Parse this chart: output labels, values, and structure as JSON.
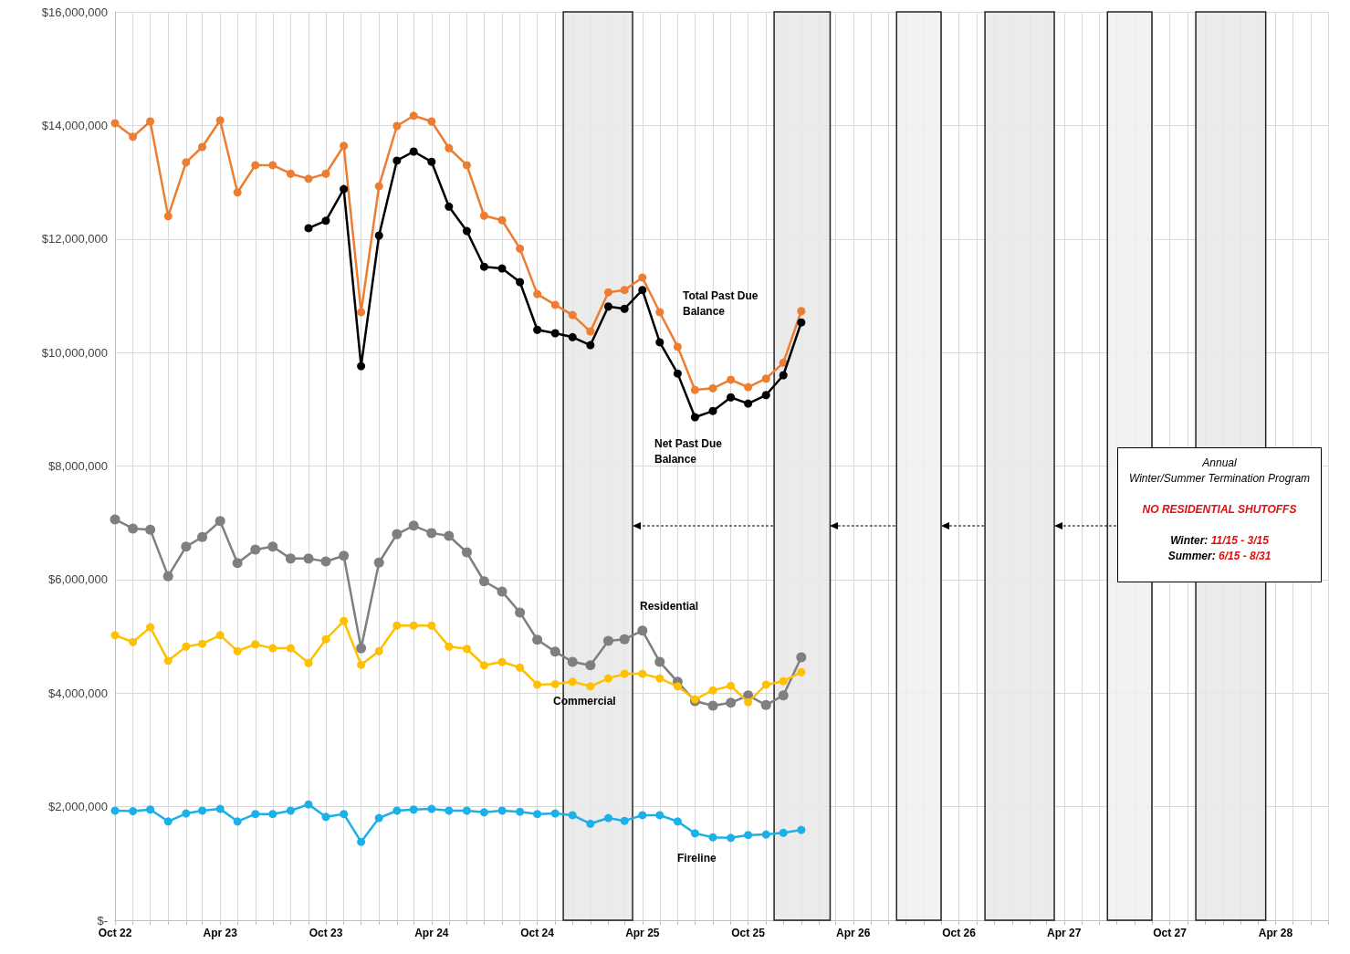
{
  "chart_data": {
    "type": "line",
    "x": [
      "2022-10",
      "2022-11",
      "2022-12",
      "2023-01",
      "2023-02",
      "2023-03",
      "2023-04",
      "2023-05",
      "2023-06",
      "2023-07",
      "2023-08",
      "2023-09",
      "2023-10",
      "2023-11",
      "2023-12",
      "2024-01",
      "2024-02",
      "2024-03",
      "2024-04",
      "2024-05",
      "2024-06",
      "2024-07",
      "2024-08",
      "2024-09",
      "2024-10",
      "2024-11",
      "2024-12",
      "2025-01",
      "2025-02",
      "2025-03",
      "2025-04",
      "2025-05",
      "2025-06",
      "2025-07",
      "2025-08",
      "2025-09",
      "2025-10",
      "2025-11",
      "2025-12",
      "2026-01"
    ],
    "series": [
      {
        "name": "Total Past Due Balance",
        "color": "#ed7d31",
        "values": [
          14040000,
          13800000,
          14070000,
          12400000,
          13350000,
          13620000,
          14090000,
          12820000,
          13300000,
          13300000,
          13150000,
          13060000,
          13150000,
          13640000,
          10710000,
          12930000,
          13990000,
          14170000,
          14070000,
          13600000,
          13300000,
          12410000,
          12330000,
          11830000,
          11030000,
          10840000,
          10660000,
          10370000,
          11060000,
          11100000,
          11320000,
          10710000,
          10100000,
          9340000,
          9370000,
          9520000,
          9390000,
          9540000,
          9820000,
          10730000
        ]
      },
      {
        "name": "Net Past Due Balance",
        "color": "#000000",
        "values": [
          null,
          null,
          null,
          null,
          null,
          null,
          null,
          null,
          null,
          null,
          null,
          12190000,
          12320000,
          12880000,
          9760000,
          12060000,
          13380000,
          13540000,
          13360000,
          12570000,
          12140000,
          11510000,
          11480000,
          11240000,
          10400000,
          10340000,
          10270000,
          10130000,
          10810000,
          10770000,
          11100000,
          10180000,
          9630000,
          8860000,
          8970000,
          9210000,
          9100000,
          9250000,
          9600000,
          10530000
        ]
      },
      {
        "name": "Residential",
        "color": "#7f7f7f",
        "values": [
          7060000,
          6900000,
          6880000,
          6060000,
          6580000,
          6750000,
          7030000,
          6290000,
          6530000,
          6580000,
          6370000,
          6370000,
          6320000,
          6420000,
          4790000,
          6300000,
          6800000,
          6950000,
          6820000,
          6770000,
          6480000,
          5970000,
          5790000,
          5420000,
          4940000,
          4730000,
          4550000,
          4490000,
          4920000,
          4950000,
          5100000,
          4550000,
          4200000,
          3860000,
          3780000,
          3830000,
          3960000,
          3790000,
          3960000,
          4630000
        ]
      },
      {
        "name": "Commercial",
        "color": "#ffc000",
        "values": [
          5020000,
          4900000,
          5160000,
          4570000,
          4820000,
          4870000,
          5020000,
          4740000,
          4860000,
          4790000,
          4790000,
          4530000,
          4950000,
          5270000,
          4500000,
          4740000,
          5190000,
          5190000,
          5190000,
          4820000,
          4780000,
          4490000,
          4550000,
          4450000,
          4150000,
          4160000,
          4200000,
          4120000,
          4260000,
          4340000,
          4340000,
          4260000,
          4120000,
          3890000,
          4050000,
          4130000,
          3840000,
          4150000,
          4210000,
          4370000
        ]
      },
      {
        "name": "Fireline",
        "color": "#1cb0e8",
        "values": [
          1930000,
          1920000,
          1950000,
          1740000,
          1880000,
          1930000,
          1960000,
          1740000,
          1870000,
          1870000,
          1930000,
          2040000,
          1820000,
          1870000,
          1380000,
          1800000,
          1930000,
          1950000,
          1960000,
          1930000,
          1930000,
          1900000,
          1930000,
          1910000,
          1870000,
          1880000,
          1850000,
          1700000,
          1800000,
          1750000,
          1850000,
          1850000,
          1740000,
          1530000,
          1460000,
          1450000,
          1500000,
          1510000,
          1540000,
          1590000
        ]
      }
    ],
    "xlim": [
      "2022-10",
      "2028-07"
    ],
    "xticks": [
      {
        "value": "2022-10",
        "label": "Oct 22"
      },
      {
        "value": "2022-11",
        "label": null
      },
      {
        "value": "2022-12",
        "label": null
      },
      {
        "value": "2023-01",
        "label": null
      },
      {
        "value": "2023-02",
        "label": null
      },
      {
        "value": "2023-03",
        "label": null
      },
      {
        "value": "2023-04",
        "label": "Apr 23"
      },
      {
        "value": "2023-05",
        "label": null
      },
      {
        "value": "2023-06",
        "label": null
      },
      {
        "value": "2023-07",
        "label": null
      },
      {
        "value": "2023-08",
        "label": null
      },
      {
        "value": "2023-09",
        "label": null
      },
      {
        "value": "2023-10",
        "label": "Oct 23"
      },
      {
        "value": "2023-11",
        "label": null
      },
      {
        "value": "2023-12",
        "label": null
      },
      {
        "value": "2024-01",
        "label": null
      },
      {
        "value": "2024-02",
        "label": null
      },
      {
        "value": "2024-03",
        "label": null
      },
      {
        "value": "2024-04",
        "label": "Apr 24"
      },
      {
        "value": "2024-05",
        "label": null
      },
      {
        "value": "2024-06",
        "label": null
      },
      {
        "value": "2024-07",
        "label": null
      },
      {
        "value": "2024-08",
        "label": null
      },
      {
        "value": "2024-09",
        "label": null
      },
      {
        "value": "2024-10",
        "label": "Oct 24"
      },
      {
        "value": "2024-11",
        "label": null
      },
      {
        "value": "2024-12",
        "label": null
      },
      {
        "value": "2025-01",
        "label": null
      },
      {
        "value": "2025-02",
        "label": null
      },
      {
        "value": "2025-03",
        "label": null
      },
      {
        "value": "2025-04",
        "label": "Apr 25"
      },
      {
        "value": "2025-05",
        "label": null
      },
      {
        "value": "2025-06",
        "label": null
      },
      {
        "value": "2025-07",
        "label": null
      },
      {
        "value": "2025-08",
        "label": null
      },
      {
        "value": "2025-09",
        "label": null
      },
      {
        "value": "2025-10",
        "label": "Oct 25"
      },
      {
        "value": "2025-11",
        "label": null
      },
      {
        "value": "2025-12",
        "label": null
      },
      {
        "value": "2026-01",
        "label": null
      },
      {
        "value": "2026-02",
        "label": null
      },
      {
        "value": "2026-03",
        "label": null
      },
      {
        "value": "2026-04",
        "label": "Apr 26"
      },
      {
        "value": "2026-05",
        "label": null
      },
      {
        "value": "2026-06",
        "label": null
      },
      {
        "value": "2026-07",
        "label": null
      },
      {
        "value": "2026-08",
        "label": null
      },
      {
        "value": "2026-09",
        "label": null
      },
      {
        "value": "2026-10",
        "label": "Oct 26"
      },
      {
        "value": "2026-11",
        "label": null
      },
      {
        "value": "2026-12",
        "label": null
      },
      {
        "value": "2027-01",
        "label": null
      },
      {
        "value": "2027-02",
        "label": null
      },
      {
        "value": "2027-03",
        "label": null
      },
      {
        "value": "2027-04",
        "label": "Apr 27"
      },
      {
        "value": "2027-05",
        "label": null
      },
      {
        "value": "2027-06",
        "label": null
      },
      {
        "value": "2027-07",
        "label": null
      },
      {
        "value": "2027-08",
        "label": null
      },
      {
        "value": "2027-09",
        "label": null
      },
      {
        "value": "2027-10",
        "label": "Oct 27"
      },
      {
        "value": "2027-11",
        "label": null
      },
      {
        "value": "2027-12",
        "label": null
      },
      {
        "value": "2028-01",
        "label": null
      },
      {
        "value": "2028-02",
        "label": null
      },
      {
        "value": "2028-03",
        "label": null
      },
      {
        "value": "2028-04",
        "label": "Apr 28"
      },
      {
        "value": "2028-05",
        "label": null
      },
      {
        "value": "2028-06",
        "label": null
      },
      {
        "value": "2028-07",
        "label": null
      }
    ],
    "ylim": [
      0,
      16000000
    ],
    "yticks": [
      {
        "value": 0,
        "label": "$-"
      },
      {
        "value": 2000000,
        "label": "$2,000,000"
      },
      {
        "value": 4000000,
        "label": "$4,000,000"
      },
      {
        "value": 6000000,
        "label": "$6,000,000"
      },
      {
        "value": 8000000,
        "label": "$8,000,000"
      },
      {
        "value": 10000000,
        "label": "$10,000,000"
      },
      {
        "value": 12000000,
        "label": "$12,000,000"
      },
      {
        "value": 14000000,
        "label": "$14,000,000"
      },
      {
        "value": 16000000,
        "label": "$16,000,000"
      }
    ],
    "bands": [
      {
        "axis": "x",
        "from": "2024-11-15",
        "to": "2025-03-15",
        "color": "#e8e8e8"
      },
      {
        "axis": "x",
        "from": "2025-11-15",
        "to": "2026-02-20",
        "color": "#e8e8e8"
      },
      {
        "axis": "x",
        "from": "2026-06-15",
        "to": "2026-08-31",
        "color": "#f0f0f0"
      },
      {
        "axis": "x",
        "from": "2026-11-15",
        "to": "2027-03-15",
        "color": "#e8e8e8"
      },
      {
        "axis": "x",
        "from": "2027-06-15",
        "to": "2027-08-31",
        "color": "#f0f0f0"
      },
      {
        "axis": "x",
        "from": "2027-11-15",
        "to": "2028-03-15",
        "color": "#e8e8e8"
      }
    ],
    "annotations": [
      "Annual",
      "Winter/Summer Termination Program",
      "NO RESIDENTIAL SHUTOFFS",
      "Winter: 11/15 - 3/15",
      "Summer: 6/15 - 8/31"
    ],
    "grid": true,
    "marker": "circle",
    "line_style": "solid"
  }
}
